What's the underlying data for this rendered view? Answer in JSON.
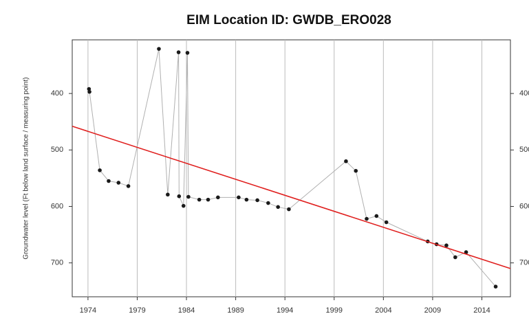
{
  "chart_data": {
    "type": "line",
    "title": "EIM Location ID:  GWDB_ERO028",
    "y_label": "Groundwater level (Ft below land surface / measuring point)",
    "xlim": [
      1972.4,
      2016.9
    ],
    "xticks": [
      1974,
      1979,
      1984,
      1989,
      1994,
      1999,
      2004,
      2009,
      2014
    ],
    "ylim": [
      305,
      760
    ],
    "yticks": [
      400,
      500,
      600,
      700
    ],
    "y_reversed": true,
    "grid": "x",
    "series": [
      {
        "color": "#b0b0b0",
        "marker": "circle",
        "marker_color": "#1a1a1a",
        "x": [
          1974.1,
          1974.15,
          1975.2,
          1976.1,
          1977.1,
          1978.1,
          1981.2,
          1982.1,
          1983.2,
          1983.25,
          1983.7,
          1984.1,
          1984.2,
          1985.3,
          1986.2,
          1987.2,
          1989.3,
          1990.1,
          1991.2,
          1992.3,
          1993.3,
          1994.4,
          2000.2,
          2001.2,
          2002.3,
          2003.3,
          2004.3,
          2008.5,
          2009.4,
          2010.4,
          2011.3,
          2012.4,
          2015.4
        ],
        "values": [
          392,
          397,
          536,
          555,
          558,
          564,
          321,
          579,
          327,
          582,
          599,
          328,
          583,
          588,
          588,
          584,
          584,
          588,
          589,
          594,
          601,
          605,
          520,
          537,
          622,
          617,
          628,
          662,
          667,
          669,
          690,
          681,
          742
        ]
      },
      {
        "color": "#e0201f",
        "x": [
          1972.4,
          2016.9
        ],
        "values": [
          458,
          710
        ]
      }
    ]
  }
}
